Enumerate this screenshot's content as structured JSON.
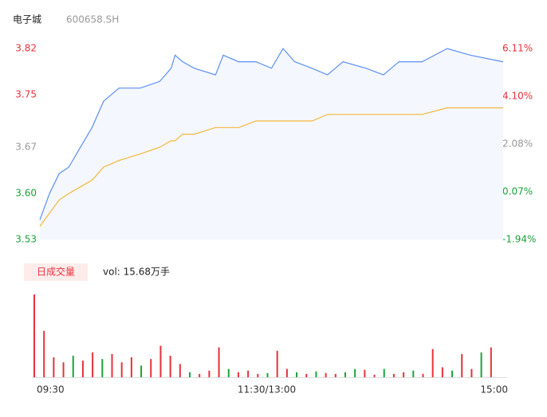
{
  "chart_data": [
    {
      "type": "line",
      "title": "电子城",
      "subtitle": "600658.SH",
      "x": [
        0,
        5,
        10,
        15,
        21,
        27,
        33,
        41,
        52,
        62,
        68,
        70,
        74,
        80,
        91,
        95,
        103,
        112,
        120,
        126,
        132,
        141,
        149,
        157,
        169,
        178,
        186,
        198,
        211,
        223,
        240
      ],
      "xlim": [
        0,
        240
      ],
      "series": [
        {
          "name": "price",
          "color": "#5b8ff0",
          "values": [
            3.56,
            3.6,
            3.63,
            3.64,
            3.67,
            3.7,
            3.74,
            3.76,
            3.76,
            3.77,
            3.79,
            3.81,
            3.8,
            3.79,
            3.78,
            3.81,
            3.8,
            3.8,
            3.79,
            3.82,
            3.8,
            3.79,
            3.78,
            3.8,
            3.79,
            3.78,
            3.8,
            3.8,
            3.82,
            3.81,
            3.8
          ]
        },
        {
          "name": "avg",
          "color": "#f5b73b",
          "values": [
            3.55,
            3.57,
            3.59,
            3.6,
            3.61,
            3.62,
            3.64,
            3.65,
            3.66,
            3.67,
            3.68,
            3.68,
            3.69,
            3.69,
            3.7,
            3.7,
            3.7,
            3.71,
            3.71,
            3.71,
            3.71,
            3.71,
            3.72,
            3.72,
            3.72,
            3.72,
            3.72,
            3.72,
            3.73,
            3.73,
            3.73
          ]
        }
      ],
      "ylim": [
        3.53,
        3.82
      ],
      "yticks": [
        3.82,
        3.75,
        3.67,
        {
          "value": 3.6,
          "label": "3.60"
        },
        3.53
      ],
      "ytick_colors": [
        "#e8313b",
        "#e8313b",
        "#999999",
        "#1aa33a",
        "#1aa33a"
      ],
      "y2lim": [
        -1.94,
        6.11
      ],
      "y2ticks": [
        {
          "value": 6.11,
          "label": "6.11%"
        },
        {
          "value": 4.1,
          "label": "4.10%"
        },
        {
          "value": 2.08,
          "label": "2.08%"
        },
        {
          "value": 0.07,
          "label": "0.07%"
        },
        {
          "value": -1.94,
          "label": "-1.94%"
        }
      ]
    },
    {
      "type": "bar",
      "legend_label": "日成交量",
      "annotation": "vol: 15.68万手",
      "x": [
        0,
        5,
        10,
        15,
        20,
        25,
        30,
        35,
        40,
        45,
        50,
        55,
        60,
        65,
        70,
        75,
        80,
        85,
        90,
        95,
        100,
        105,
        110,
        115,
        120,
        125,
        130,
        135,
        140,
        145,
        150,
        155,
        160,
        165,
        170,
        175,
        180,
        185,
        190,
        195,
        200,
        205,
        210,
        215,
        220,
        225,
        230,
        235
      ],
      "values": [
        5000,
        2800,
        1200,
        900,
        1300,
        1000,
        1500,
        1100,
        1400,
        900,
        1200,
        700,
        1100,
        1900,
        1300,
        800,
        300,
        200,
        400,
        1800,
        500,
        300,
        400,
        200,
        250,
        1600,
        500,
        300,
        200,
        350,
        250,
        200,
        300,
        500,
        450,
        150,
        500,
        200,
        300,
        400,
        200,
        1700,
        600,
        400,
        1400,
        500,
        1500,
        1800
      ],
      "colors": [
        "#e8313b",
        "#e8313b",
        "#e8313b",
        "#e8313b",
        "#1aa33a",
        "#e8313b",
        "#e8313b",
        "#1aa33a",
        "#e8313b",
        "#e8313b",
        "#e8313b",
        "#1aa33a",
        "#e8313b",
        "#e8313b",
        "#e8313b",
        "#e8313b",
        "#1aa33a",
        "#e8313b",
        "#e8313b",
        "#e8313b",
        "#1aa33a",
        "#e8313b",
        "#e8313b",
        "#e8313b",
        "#1aa33a",
        "#e8313b",
        "#e8313b",
        "#1aa33a",
        "#e8313b",
        "#1aa33a",
        "#e8313b",
        "#e8313b",
        "#1aa33a",
        "#1aa33a",
        "#e8313b",
        "#e8313b",
        "#1aa33a",
        "#e8313b",
        "#e8313b",
        "#1aa33a",
        "#e8313b",
        "#e8313b",
        "#e8313b",
        "#1aa33a",
        "#e8313b",
        "#e8313b",
        "#1aa33a",
        "#e8313b"
      ],
      "xlim": [
        0,
        240
      ],
      "xticks": [
        {
          "value": 0,
          "label": "09:30"
        },
        {
          "value": 120,
          "label": "11:30/13:00"
        },
        {
          "value": 240,
          "label": "15:00"
        }
      ]
    }
  ]
}
